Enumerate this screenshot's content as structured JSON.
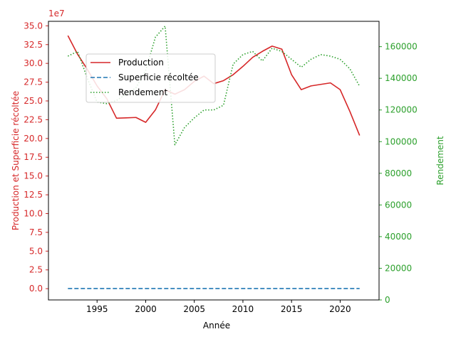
{
  "chart_data": {
    "type": "line",
    "xlabel": "Année",
    "ylabel_left": "Production et Superficie récoltée",
    "ylabel_right": "Rendement",
    "left_offset_label": "1e7",
    "xlim": [
      1990,
      2024
    ],
    "ylim_left": [
      -1.5,
      35.6
    ],
    "ylim_right": [
      0,
      176000
    ],
    "x_ticks": [
      1995,
      2000,
      2005,
      2010,
      2015,
      2020
    ],
    "y_left_ticks": [
      "0.0",
      "2.5",
      "5.0",
      "7.5",
      "10.0",
      "12.5",
      "15.0",
      "17.5",
      "20.0",
      "22.5",
      "25.0",
      "27.5",
      "30.0",
      "32.5",
      "35.0"
    ],
    "y_left_tick_values": [
      0,
      2.5,
      5,
      7.5,
      10,
      12.5,
      15,
      17.5,
      20,
      22.5,
      25,
      27.5,
      30,
      32.5,
      35
    ],
    "y_right_ticks": [
      "0",
      "20000",
      "40000",
      "60000",
      "80000",
      "100000",
      "120000",
      "140000",
      "160000"
    ],
    "y_right_tick_values": [
      0,
      20000,
      40000,
      60000,
      80000,
      100000,
      120000,
      140000,
      160000
    ],
    "legend_position": "upper-left",
    "grid": false,
    "colors": {
      "production": "#d62728",
      "superficie": "#1f77b4",
      "rendement": "#2ca02c",
      "axis": "#000000"
    },
    "x": [
      1992,
      1993,
      1994,
      1995,
      1996,
      1997,
      1998,
      1999,
      2000,
      2001,
      2002,
      2003,
      2004,
      2005,
      2006,
      2007,
      2008,
      2009,
      2010,
      2011,
      2012,
      2013,
      2014,
      2015,
      2016,
      2017,
      2018,
      2019,
      2020,
      2021,
      2022
    ],
    "series": [
      {
        "name": "Production",
        "axis": "left",
        "style": "solid",
        "values": [
          33.7,
          31.2,
          29.2,
          27.0,
          25.3,
          22.7,
          22.75,
          22.8,
          22.15,
          23.8,
          26.5,
          25.9,
          26.5,
          27.6,
          28.3,
          27.3,
          27.7,
          28.5,
          29.6,
          30.8,
          31.6,
          32.3,
          31.9,
          28.5,
          26.5,
          27.0,
          27.2,
          27.4,
          26.5,
          23.6,
          20.4
        ]
      },
      {
        "name": "Superficie récoltée",
        "axis": "left",
        "style": "dashed",
        "values": [
          0.016,
          0.016,
          0.016,
          0.016,
          0.016,
          0.016,
          0.016,
          0.016,
          0.016,
          0.016,
          0.016,
          0.016,
          0.016,
          0.016,
          0.016,
          0.016,
          0.016,
          0.016,
          0.016,
          0.016,
          0.016,
          0.016,
          0.016,
          0.016,
          0.016,
          0.016,
          0.016,
          0.016,
          0.016,
          0.016,
          0.016
        ]
      },
      {
        "name": "Rendement",
        "axis": "right",
        "style": "dotted",
        "values": [
          154000,
          157000,
          140000,
          125000,
          124000,
          126000,
          130000,
          134000,
          145000,
          166000,
          173000,
          98000,
          109000,
          115000,
          120000,
          120000,
          123000,
          149000,
          155000,
          157000,
          151000,
          159000,
          157000,
          152000,
          147000,
          152000,
          155000,
          154000,
          152000,
          146000,
          135000
        ]
      }
    ]
  }
}
